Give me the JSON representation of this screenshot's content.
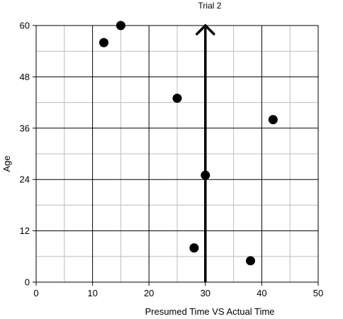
{
  "chart_data": {
    "type": "scatter",
    "title": "Trial 2",
    "xlabel": "Presumed Time VS Actual Time",
    "ylabel": "Age",
    "xlim": [
      0,
      50
    ],
    "ylim": [
      0,
      60
    ],
    "xticks": [
      0,
      10,
      20,
      30,
      40,
      50
    ],
    "yticks": [
      0,
      12,
      24,
      36,
      48,
      60
    ],
    "x_tick_labels": [
      "0",
      "10",
      "20",
      "30",
      "40",
      "50"
    ],
    "y_tick_labels": [
      "0",
      "12",
      "24",
      "36",
      "48",
      "60"
    ],
    "grid": true,
    "points": [
      {
        "x": 12,
        "y": 56
      },
      {
        "x": 15,
        "y": 60
      },
      {
        "x": 25,
        "y": 43
      },
      {
        "x": 30,
        "y": 25
      },
      {
        "x": 28,
        "y": 8
      },
      {
        "x": 38,
        "y": 5
      },
      {
        "x": 42,
        "y": 38
      }
    ],
    "annotations": [
      {
        "type": "arrow",
        "x": 30,
        "y_start": 0,
        "y_end": 60
      }
    ],
    "colors": {
      "points": "#000000",
      "grid_major": "#000000",
      "grid_minor": "#bdbdbd",
      "arrow": "#000000"
    }
  }
}
